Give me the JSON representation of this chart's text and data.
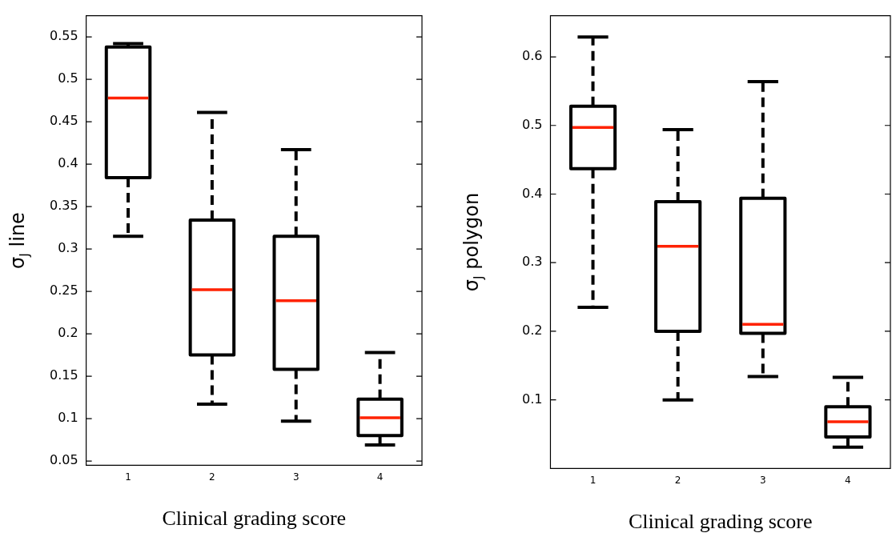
{
  "chart_data": [
    {
      "type": "box",
      "categories": [
        "1",
        "2",
        "3",
        "4"
      ],
      "xlabel": "Clinical grading score",
      "ylabel": "σ$_{J}$ line",
      "ylim": [
        0.045,
        0.575
      ],
      "yticks": [
        0.05,
        0.1,
        0.15,
        0.2,
        0.25,
        0.3,
        0.35,
        0.4,
        0.45,
        0.5,
        0.55
      ],
      "line_style": "dashed",
      "series": [
        {
          "color": "#000000",
          "boxes": [
            {
              "low": 0.315,
              "q1": 0.384,
              "median": 0.478,
              "q3": 0.538,
              "high": 0.542
            },
            {
              "low": 0.117,
              "q1": 0.175,
              "median": 0.252,
              "q3": 0.334,
              "high": 0.461
            },
            {
              "low": 0.097,
              "q1": 0.158,
              "median": 0.239,
              "q3": 0.315,
              "high": 0.417
            },
            {
              "low": 0.069,
              "q1": 0.08,
              "median": 0.101,
              "q3": 0.123,
              "high": 0.178
            }
          ]
        }
      ]
    },
    {
      "type": "box",
      "categories": [
        "1",
        "2",
        "3",
        "4"
      ],
      "xlabel": "Clinical grading score",
      "ylabel": "σ$_{J}$ polygon",
      "ylim": [
        0,
        0.66
      ],
      "yticks": [
        0.1,
        0.2,
        0.3,
        0.4,
        0.5,
        0.6
      ],
      "line_style": "dashed",
      "series": [
        {
          "color": "#000000",
          "boxes": [
            {
              "low": 0.235,
              "q1": 0.437,
              "median": 0.497,
              "q3": 0.528,
              "high": 0.629
            },
            {
              "low": 0.1,
              "q1": 0.2,
              "median": 0.324,
              "q3": 0.389,
              "high": 0.494
            },
            {
              "low": 0.134,
              "q1": 0.197,
              "median": 0.21,
              "q3": 0.394,
              "high": 0.564
            },
            {
              "low": 0.031,
              "q1": 0.046,
              "median": 0.068,
              "q3": 0.09,
              "high": 0.133
            }
          ]
        }
      ]
    }
  ]
}
